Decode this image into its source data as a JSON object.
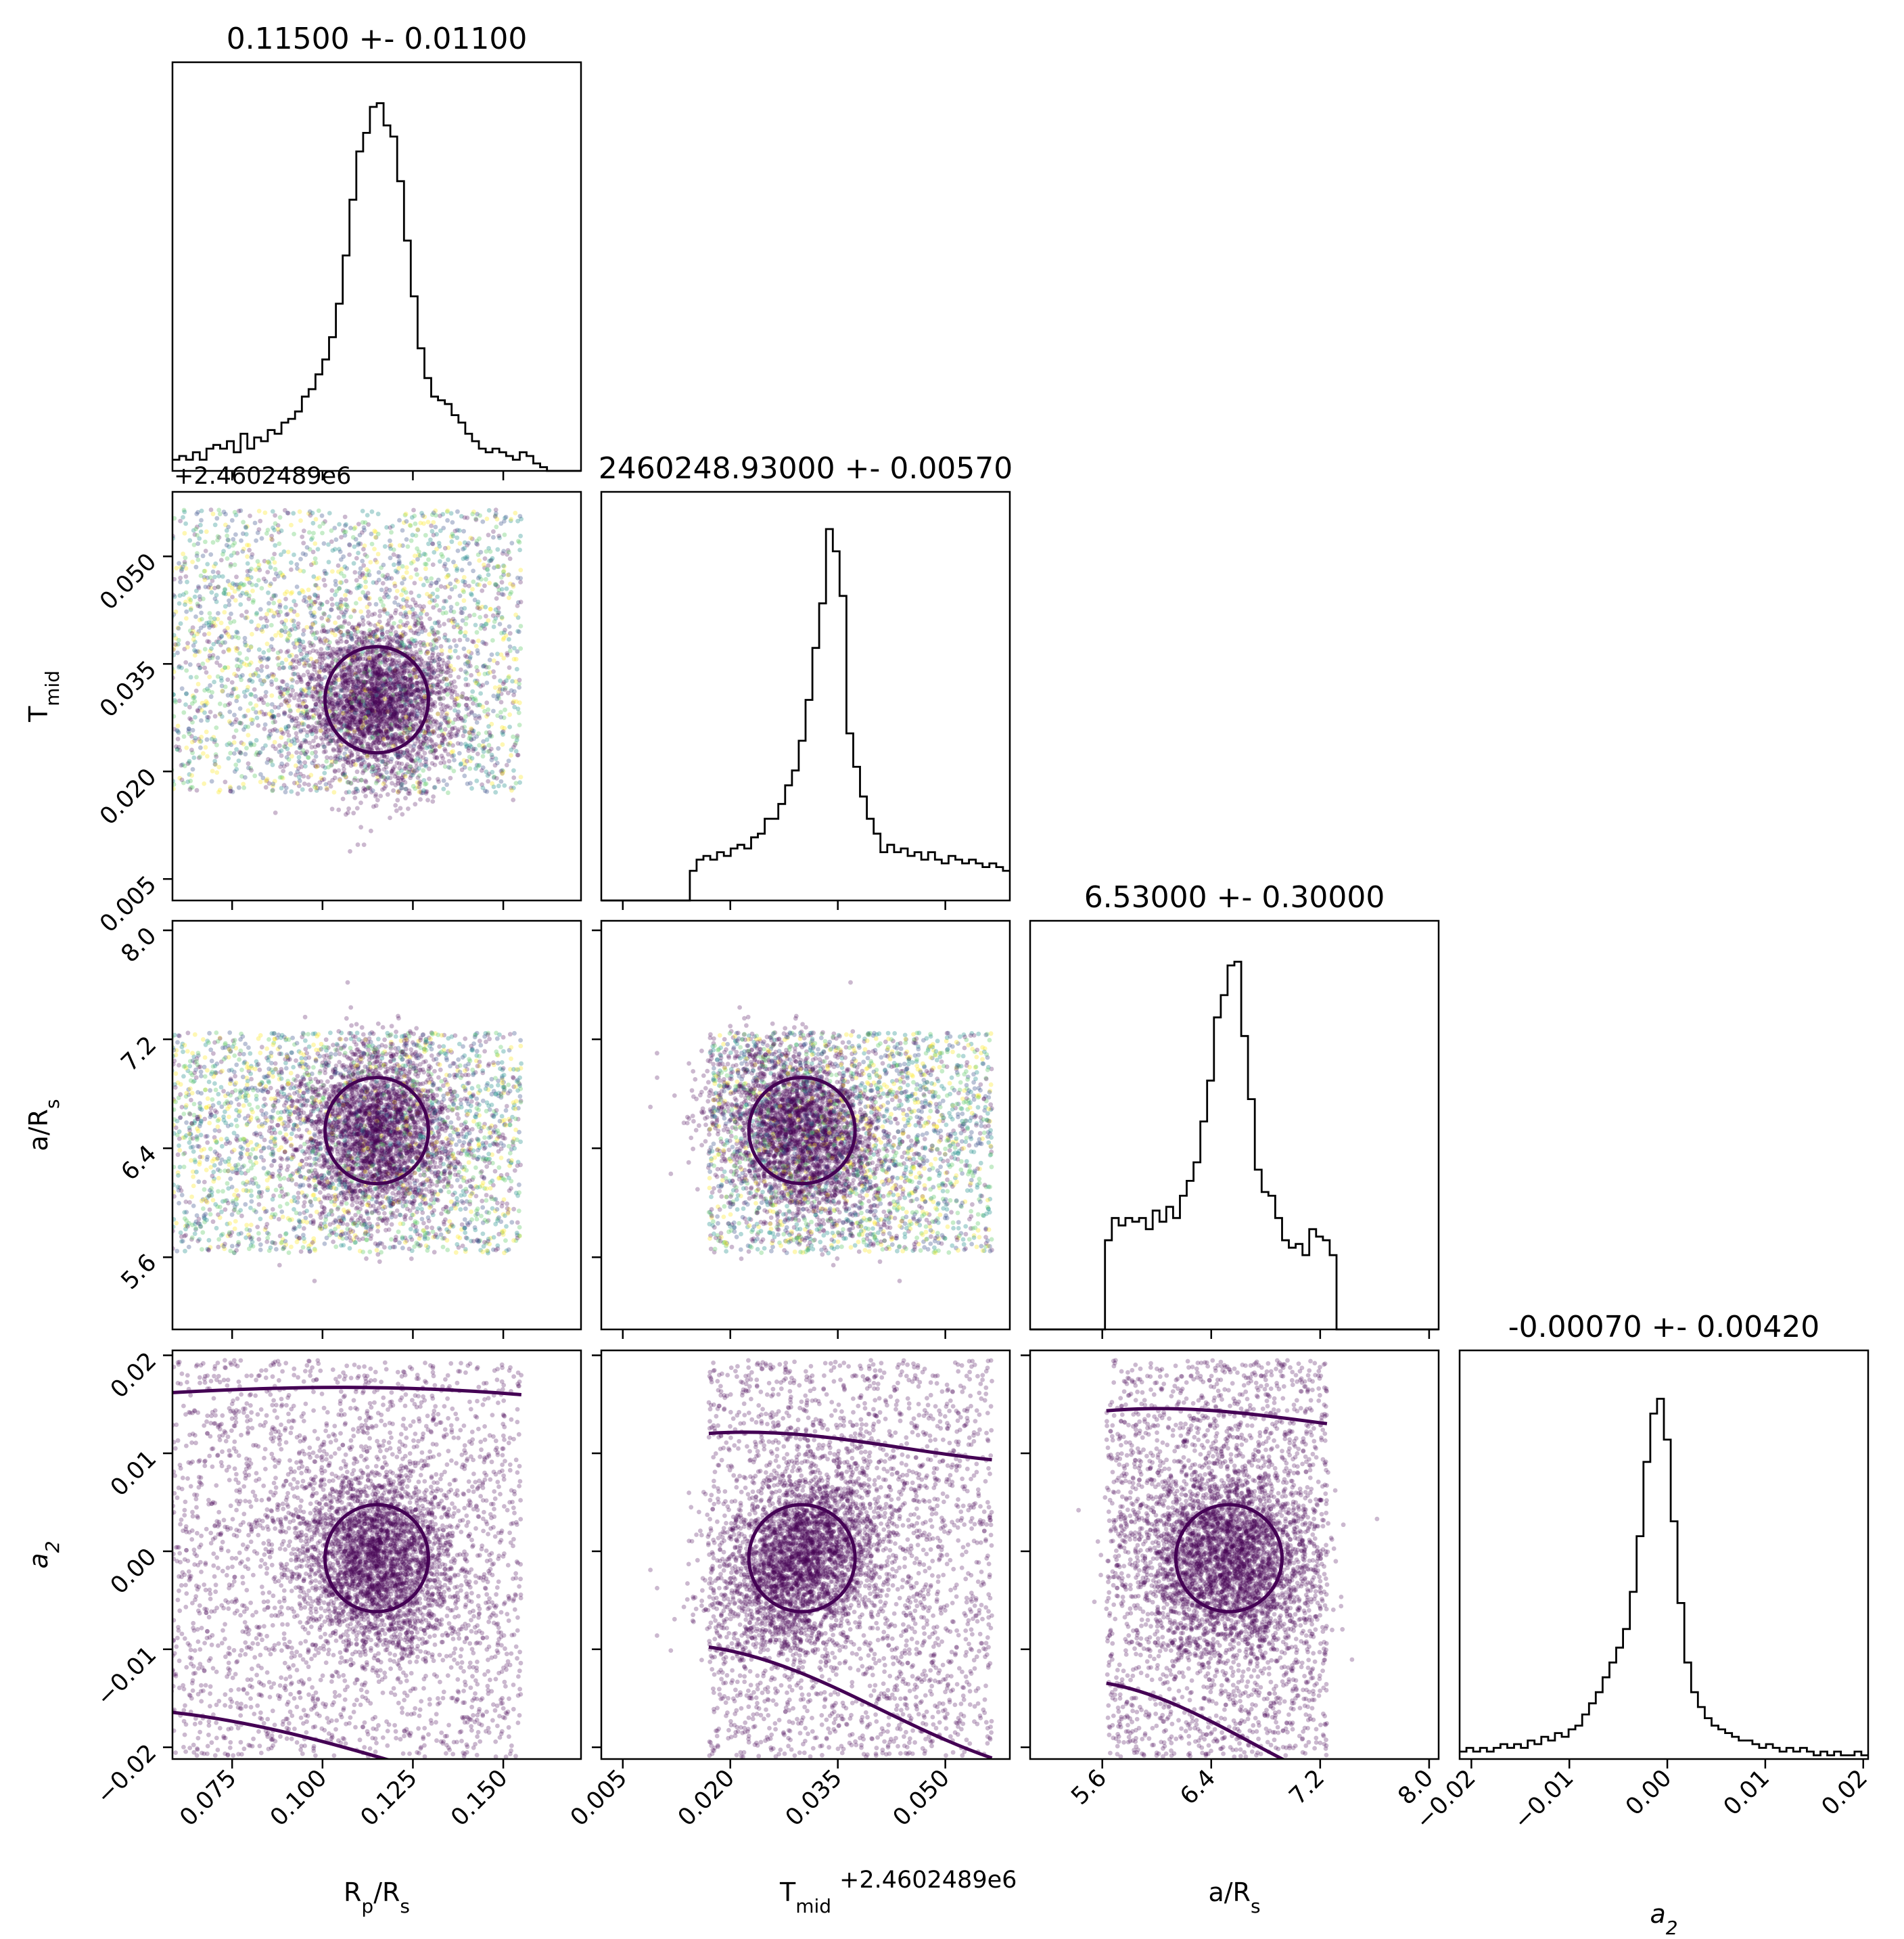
{
  "chart_data": {
    "type": "scatter",
    "kind": "corner-plot",
    "parameters": [
      {
        "key": "rp",
        "label_base": "R",
        "label_sub": "p",
        "label_rest": "/R",
        "label_sub2": "s",
        "title": "0.11500 +- 0.01100",
        "median": 0.115,
        "sigma": 0.011,
        "range": [
          0.0585,
          0.1715
        ],
        "ticks": [
          "0.075",
          "0.100",
          "0.125",
          "0.150"
        ],
        "tick_values": [
          0.075,
          0.1,
          0.125,
          0.15
        ],
        "histogram_heights": [
          0.03,
          0.04,
          0.03,
          0.05,
          0.03,
          0.06,
          0.07,
          0.06,
          0.08,
          0.05,
          0.1,
          0.06,
          0.09,
          0.08,
          0.11,
          0.1,
          0.13,
          0.14,
          0.16,
          0.2,
          0.22,
          0.26,
          0.3,
          0.36,
          0.45,
          0.58,
          0.73,
          0.86,
          0.91,
          0.98,
          0.99,
          0.93,
          0.9,
          0.78,
          0.62,
          0.47,
          0.33,
          0.25,
          0.2,
          0.19,
          0.18,
          0.15,
          0.13,
          0.1,
          0.08,
          0.06,
          0.05,
          0.06,
          0.05,
          0.04,
          0.03,
          0.05,
          0.04,
          0.02,
          0.01,
          0.0,
          0.0,
          0.0,
          0.0,
          0.0
        ]
      },
      {
        "key": "tmid",
        "label_base": "T",
        "label_sub": "mid",
        "title": "2460248.93000 +- 0.00570",
        "offset_text": "+2.4602489e6",
        "median": 0.03,
        "sigma": 0.0057,
        "range": [
          0.002,
          0.059
        ],
        "ticks": [
          "0.005",
          "0.020",
          "0.035",
          "0.050"
        ],
        "tick_values": [
          0.005,
          0.02,
          0.035,
          0.05
        ],
        "histogram_heights": [
          0.0,
          0.0,
          0.0,
          0.0,
          0.0,
          0.0,
          0.0,
          0.0,
          0.0,
          0.0,
          0.0,
          0.0,
          0.0,
          0.08,
          0.11,
          0.12,
          0.11,
          0.13,
          0.12,
          0.14,
          0.15,
          0.14,
          0.17,
          0.18,
          0.22,
          0.22,
          0.26,
          0.31,
          0.35,
          0.43,
          0.54,
          0.68,
          0.8,
          1.0,
          0.94,
          0.82,
          0.45,
          0.36,
          0.28,
          0.22,
          0.18,
          0.13,
          0.15,
          0.13,
          0.14,
          0.12,
          0.13,
          0.11,
          0.13,
          0.11,
          0.1,
          0.12,
          0.11,
          0.1,
          0.11,
          0.1,
          0.09,
          0.1,
          0.09,
          0.08
        ]
      },
      {
        "key": "ars",
        "label_base": "a/R",
        "label_sub": "s",
        "title": "6.53000 +- 0.30000",
        "median": 6.53,
        "sigma": 0.3,
        "range": [
          5.07,
          8.07
        ],
        "ticks": [
          "5.6",
          "6.4",
          "7.2",
          "8.0"
        ],
        "tick_values": [
          5.6,
          6.4,
          7.2,
          8.0
        ],
        "histogram_heights": [
          0.0,
          0.0,
          0.0,
          0.0,
          0.0,
          0.0,
          0.0,
          0.0,
          0.0,
          0.0,
          0.0,
          0.24,
          0.3,
          0.28,
          0.3,
          0.29,
          0.3,
          0.27,
          0.32,
          0.29,
          0.33,
          0.3,
          0.36,
          0.4,
          0.45,
          0.56,
          0.67,
          0.84,
          0.9,
          0.98,
          0.99,
          0.79,
          0.62,
          0.43,
          0.37,
          0.36,
          0.3,
          0.24,
          0.22,
          0.23,
          0.2,
          0.27,
          0.25,
          0.24,
          0.2,
          0.0,
          0.0,
          0.0,
          0.0,
          0.0,
          0.0,
          0.0,
          0.0,
          0.0,
          0.0,
          0.0,
          0.0,
          0.0,
          0.0,
          0.0
        ]
      },
      {
        "key": "a2",
        "label_base": "a",
        "label_sub": "2",
        "italic": true,
        "title": "-0.00070 +- 0.00420",
        "median": -0.0007,
        "sigma": 0.0042,
        "range": [
          -0.0212,
          0.0205
        ],
        "ticks": [
          "−0.02",
          "−0.01",
          "0.00",
          "0.01",
          "0.02"
        ],
        "tick_values": [
          -0.02,
          -0.01,
          0.0,
          0.01,
          0.02
        ],
        "histogram_heights": [
          0.02,
          0.03,
          0.02,
          0.03,
          0.02,
          0.03,
          0.04,
          0.03,
          0.04,
          0.03,
          0.05,
          0.04,
          0.06,
          0.05,
          0.07,
          0.06,
          0.08,
          0.09,
          0.12,
          0.15,
          0.18,
          0.22,
          0.26,
          0.3,
          0.35,
          0.45,
          0.6,
          0.8,
          0.93,
          0.97,
          0.86,
          0.64,
          0.42,
          0.26,
          0.18,
          0.14,
          0.11,
          0.09,
          0.08,
          0.07,
          0.06,
          0.05,
          0.05,
          0.04,
          0.03,
          0.04,
          0.03,
          0.02,
          0.03,
          0.02,
          0.03,
          0.02,
          0.01,
          0.02,
          0.01,
          0.02,
          0.01,
          0.01,
          0.02,
          0.01
        ]
      }
    ],
    "correlations": {
      "tmid_rp": 0.0,
      "ars_rp": 0.0,
      "ars_tmid": -0.25,
      "a2_rp": -0.15,
      "a2_tmid": 0.3,
      "a2_ars": 0.05
    },
    "scatter_colormap": [
      "#440154",
      "#3b528b",
      "#21908d",
      "#5dc963",
      "#fde725"
    ],
    "contour_color": "#440154",
    "histogram_color": "#000000"
  }
}
